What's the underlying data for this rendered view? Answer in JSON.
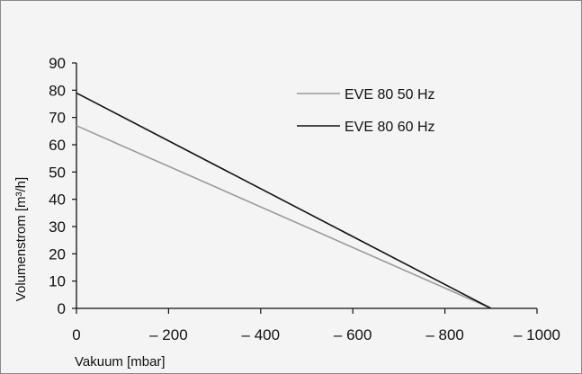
{
  "chart_data": {
    "type": "line",
    "title": "",
    "xlabel": "Vakuum [mbar]",
    "ylabel": "Volumenstrom [m³/h]",
    "xlim": [
      0,
      -1000
    ],
    "ylim": [
      0,
      90
    ],
    "x_ticks": [
      0,
      -200,
      -400,
      -600,
      -800,
      -1000
    ],
    "x_tick_labels": [
      "0",
      "– 200",
      "– 400",
      "– 600",
      "– 800",
      "– 1000"
    ],
    "y_ticks": [
      0,
      10,
      20,
      30,
      40,
      50,
      60,
      70,
      80,
      90
    ],
    "y_tick_labels": [
      "0",
      "10",
      "20",
      "30",
      "40",
      "50",
      "60",
      "70",
      "80",
      "90"
    ],
    "grid": false,
    "legend_position": "top-right",
    "series": [
      {
        "name": "EVE 80 50 Hz",
        "color": "#9a9a9a",
        "points": [
          [
            0,
            67
          ],
          [
            -900,
            0
          ]
        ]
      },
      {
        "name": "EVE 80 60 Hz",
        "color": "#111111",
        "points": [
          [
            0,
            79
          ],
          [
            -900,
            0
          ]
        ]
      }
    ]
  }
}
